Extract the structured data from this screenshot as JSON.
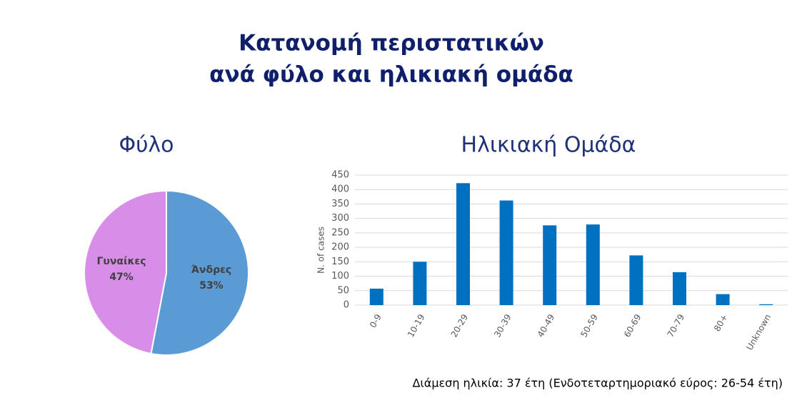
{
  "title": [
    "Κατανομή περιστατικών",
    "ανά φύλο και ηλικιακή ομάδα"
  ],
  "note": "Διάμεση ηλικία: 37 έτη (Ενδοτεταρτημοριακό εύρος: 26-54 έτη)",
  "chart_data": [
    {
      "type": "pie",
      "title": "Φύλο",
      "categories": [
        "Άνδρες",
        "Γυναίκες"
      ],
      "values": [
        53,
        47
      ],
      "value_labels": [
        "53%",
        "47%"
      ],
      "colors": [
        "#5b9bd5",
        "#d88ee9"
      ]
    },
    {
      "type": "bar",
      "title": "Ηλικιακή Ομάδα",
      "y_label": "N. of cases",
      "categories": [
        "0-9",
        "10-19",
        "20-29",
        "30-39",
        "40-49",
        "50-59",
        "60-69",
        "70-79",
        "80+",
        "Unknown"
      ],
      "values": [
        57,
        150,
        422,
        362,
        276,
        279,
        172,
        114,
        38,
        3
      ],
      "color": "#0070c0",
      "ylim": [
        0,
        450
      ],
      "yticks": [
        0,
        50,
        100,
        150,
        200,
        250,
        300,
        350,
        400,
        450
      ],
      "grid": true
    }
  ]
}
